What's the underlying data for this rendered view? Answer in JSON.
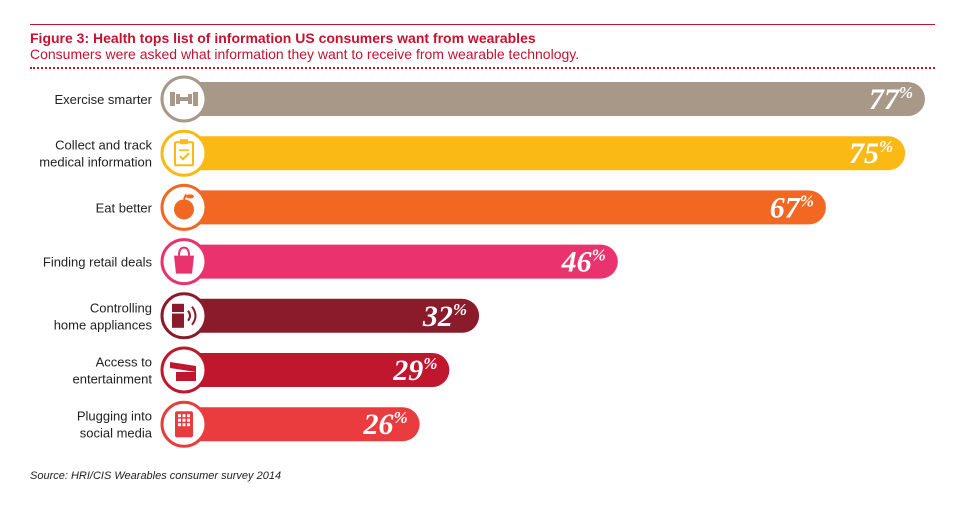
{
  "title": "Figure 3: Health tops list of information US consumers want from wearables",
  "subtitle": "Consumers were asked what information they want to receive from wearable technology.",
  "source": "Source: HRI/CIS Wearables consumer survey 2014",
  "chart_data": {
    "type": "bar",
    "orientation": "horizontal",
    "title": "Figure 3: Health tops list of information US consumers want from wearables",
    "subtitle": "Consumers were asked what information they want to receive from wearable technology.",
    "value_suffix": "%",
    "xlim": [
      0,
      77
    ],
    "grid": false,
    "legend": "none",
    "categories": [
      [
        "Exercise smarter"
      ],
      [
        "Collect and track",
        "medical information"
      ],
      [
        "Eat better"
      ],
      [
        "Finding retail deals"
      ],
      [
        "Controlling",
        "home appliances"
      ],
      [
        "Access to",
        "entertainment"
      ],
      [
        "Plugging into",
        "social media"
      ]
    ],
    "values": [
      77,
      75,
      67,
      46,
      32,
      29,
      26
    ],
    "colors": [
      "#a89888",
      "#fbb914",
      "#f26722",
      "#e8336e",
      "#8b1a2b",
      "#c0172f",
      "#ea3b3f"
    ],
    "icons": [
      "dumbbell-icon",
      "clipboard-icon",
      "apple-icon",
      "shopping-bag-icon",
      "appliance-icon",
      "ticket-icon",
      "phone-touch-icon"
    ]
  }
}
